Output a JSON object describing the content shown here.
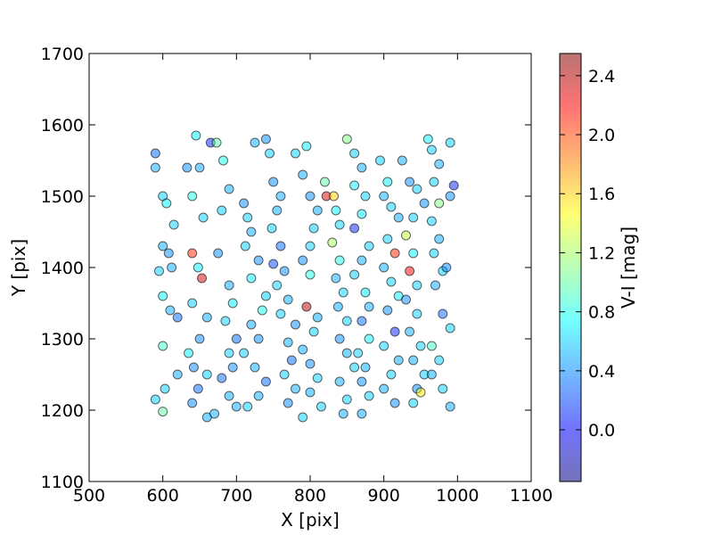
{
  "chart_data": {
    "type": "scatter",
    "xlabel": "X [pix]",
    "ylabel": "Y [pix]",
    "xlim": [
      500,
      1100
    ],
    "ylim": [
      1100,
      1700
    ],
    "x_ticks": [
      "500",
      "600",
      "700",
      "800",
      "900",
      "1000",
      "1100"
    ],
    "y_ticks": [
      "1100",
      "1200",
      "1300",
      "1400",
      "1500",
      "1600",
      "1700"
    ],
    "grid": false,
    "colorbar": {
      "label": "V-I [mag]",
      "range": [
        -0.35,
        2.55
      ],
      "ticks": [
        "0.0",
        "0.4",
        "0.8",
        "1.2",
        "1.6",
        "2.0",
        "2.4"
      ],
      "colormap": "jet",
      "alpha": 0.5
    },
    "colormap_stops": [
      "#00007f",
      "#0000ff",
      "#007fff",
      "#00ffff",
      "#7fff7f",
      "#ffff00",
      "#ff7f00",
      "#ff0000",
      "#7f0000"
    ],
    "points": [
      [
        590,
        1560,
        0.3
      ],
      [
        590,
        1540,
        0.5
      ],
      [
        600,
        1500,
        0.6
      ],
      [
        605,
        1490,
        0.7
      ],
      [
        615,
        1460,
        0.6
      ],
      [
        600,
        1430,
        0.5
      ],
      [
        608,
        1420,
        0.4
      ],
      [
        612,
        1400,
        0.5
      ],
      [
        595,
        1395,
        0.6
      ],
      [
        600,
        1360,
        0.7
      ],
      [
        610,
        1340,
        0.5
      ],
      [
        620,
        1330,
        0.3
      ],
      [
        600,
        1290,
        0.9
      ],
      [
        603,
        1230,
        0.6
      ],
      [
        590,
        1215,
        0.6
      ],
      [
        600,
        1198,
        1.0
      ],
      [
        620,
        1250,
        0.5
      ],
      [
        633,
        1540,
        0.4
      ],
      [
        645,
        1585,
        0.7
      ],
      [
        650,
        1540,
        0.5
      ],
      [
        640,
        1500,
        0.8
      ],
      [
        655,
        1470,
        0.6
      ],
      [
        640,
        1420,
        2.1
      ],
      [
        648,
        1400,
        0.7
      ],
      [
        653,
        1385,
        2.3
      ],
      [
        640,
        1350,
        0.6
      ],
      [
        660,
        1330,
        0.5
      ],
      [
        650,
        1300,
        0.4
      ],
      [
        635,
        1280,
        0.7
      ],
      [
        642,
        1260,
        0.4
      ],
      [
        660,
        1250,
        0.6
      ],
      [
        648,
        1230,
        0.3
      ],
      [
        640,
        1210,
        0.4
      ],
      [
        660,
        1190,
        0.5
      ],
      [
        670,
        1195,
        0.5
      ],
      [
        665,
        1575,
        0.1
      ],
      [
        673,
        1575,
        1.0
      ],
      [
        682,
        1550,
        0.8
      ],
      [
        690,
        1510,
        0.5
      ],
      [
        680,
        1480,
        0.6
      ],
      [
        675,
        1420,
        0.4
      ],
      [
        690,
        1375,
        0.5
      ],
      [
        695,
        1350,
        0.7
      ],
      [
        685,
        1325,
        0.6
      ],
      [
        700,
        1300,
        0.3
      ],
      [
        690,
        1280,
        0.6
      ],
      [
        695,
        1260,
        0.4
      ],
      [
        680,
        1245,
        0.3
      ],
      [
        690,
        1220,
        0.5
      ],
      [
        700,
        1205,
        0.5
      ],
      [
        710,
        1490,
        0.4
      ],
      [
        715,
        1470,
        0.6
      ],
      [
        720,
        1450,
        0.5
      ],
      [
        712,
        1430,
        0.6
      ],
      [
        730,
        1410,
        0.4
      ],
      [
        720,
        1385,
        0.7
      ],
      [
        740,
        1360,
        0.6
      ],
      [
        735,
        1340,
        0.8
      ],
      [
        720,
        1320,
        0.5
      ],
      [
        730,
        1300,
        0.4
      ],
      [
        710,
        1280,
        0.6
      ],
      [
        725,
        1260,
        0.5
      ],
      [
        740,
        1240,
        0.3
      ],
      [
        730,
        1220,
        0.5
      ],
      [
        715,
        1205,
        0.6
      ],
      [
        725,
        1575,
        0.5
      ],
      [
        740,
        1580,
        0.4
      ],
      [
        745,
        1560,
        0.6
      ],
      [
        750,
        1520,
        0.4
      ],
      [
        760,
        1500,
        0.5
      ],
      [
        755,
        1480,
        0.5
      ],
      [
        748,
        1455,
        0.6
      ],
      [
        760,
        1430,
        0.3
      ],
      [
        750,
        1405,
        0.2
      ],
      [
        765,
        1395,
        0.4
      ],
      [
        755,
        1375,
        0.6
      ],
      [
        770,
        1355,
        0.5
      ],
      [
        760,
        1335,
        0.6
      ],
      [
        780,
        1320,
        0.4
      ],
      [
        770,
        1295,
        0.5
      ],
      [
        775,
        1270,
        0.3
      ],
      [
        765,
        1250,
        0.6
      ],
      [
        780,
        1230,
        0.5
      ],
      [
        770,
        1210,
        0.4
      ],
      [
        790,
        1190,
        0.6
      ],
      [
        780,
        1560,
        0.6
      ],
      [
        795,
        1570,
        0.7
      ],
      [
        790,
        1530,
        0.5
      ],
      [
        800,
        1500,
        0.4
      ],
      [
        810,
        1480,
        0.5
      ],
      [
        805,
        1455,
        0.6
      ],
      [
        800,
        1430,
        0.6
      ],
      [
        790,
        1410,
        0.4
      ],
      [
        800,
        1390,
        0.8
      ],
      [
        795,
        1345,
        2.4
      ],
      [
        810,
        1330,
        0.5
      ],
      [
        805,
        1310,
        0.6
      ],
      [
        790,
        1285,
        0.5
      ],
      [
        800,
        1265,
        0.4
      ],
      [
        810,
        1245,
        0.6
      ],
      [
        800,
        1225,
        0.5
      ],
      [
        815,
        1205,
        0.6
      ],
      [
        820,
        1520,
        1.0
      ],
      [
        822,
        1500,
        2.3
      ],
      [
        832,
        1500,
        1.6
      ],
      [
        835,
        1480,
        0.7
      ],
      [
        840,
        1460,
        0.6
      ],
      [
        830,
        1435,
        1.2
      ],
      [
        840,
        1410,
        0.8
      ],
      [
        835,
        1385,
        0.5
      ],
      [
        845,
        1365,
        0.6
      ],
      [
        838,
        1345,
        0.5
      ],
      [
        850,
        1325,
        0.6
      ],
      [
        840,
        1300,
        0.4
      ],
      [
        850,
        1280,
        0.5
      ],
      [
        860,
        1260,
        0.6
      ],
      [
        840,
        1240,
        0.5
      ],
      [
        850,
        1215,
        0.6
      ],
      [
        845,
        1195,
        0.5
      ],
      [
        850,
        1580,
        1.1
      ],
      [
        860,
        1560,
        0.6
      ],
      [
        870,
        1540,
        0.5
      ],
      [
        860,
        1515,
        0.7
      ],
      [
        875,
        1500,
        0.6
      ],
      [
        870,
        1475,
        0.7
      ],
      [
        860,
        1455,
        0.1
      ],
      [
        880,
        1430,
        0.6
      ],
      [
        870,
        1410,
        0.5
      ],
      [
        860,
        1390,
        0.6
      ],
      [
        875,
        1365,
        0.7
      ],
      [
        880,
        1345,
        0.5
      ],
      [
        870,
        1325,
        0.3
      ],
      [
        880,
        1300,
        0.7
      ],
      [
        865,
        1280,
        0.6
      ],
      [
        875,
        1260,
        0.5
      ],
      [
        870,
        1240,
        0.4
      ],
      [
        880,
        1220,
        0.6
      ],
      [
        870,
        1195,
        0.5
      ],
      [
        895,
        1550,
        0.6
      ],
      [
        905,
        1520,
        0.7
      ],
      [
        900,
        1500,
        0.5
      ],
      [
        910,
        1485,
        0.6
      ],
      [
        920,
        1470,
        0.5
      ],
      [
        905,
        1440,
        0.6
      ],
      [
        915,
        1420,
        2.1
      ],
      [
        900,
        1400,
        0.5
      ],
      [
        910,
        1380,
        0.6
      ],
      [
        920,
        1360,
        0.7
      ],
      [
        905,
        1340,
        0.4
      ],
      [
        915,
        1310,
        0.1
      ],
      [
        900,
        1290,
        0.6
      ],
      [
        920,
        1270,
        0.5
      ],
      [
        910,
        1250,
        0.6
      ],
      [
        900,
        1230,
        0.5
      ],
      [
        915,
        1210,
        0.4
      ],
      [
        925,
        1550,
        0.5
      ],
      [
        935,
        1520,
        0.4
      ],
      [
        945,
        1510,
        0.6
      ],
      [
        955,
        1490,
        0.4
      ],
      [
        940,
        1470,
        0.6
      ],
      [
        930,
        1445,
        1.3
      ],
      [
        940,
        1420,
        0.7
      ],
      [
        935,
        1395,
        2.2
      ],
      [
        945,
        1375,
        0.6
      ],
      [
        930,
        1355,
        0.4
      ],
      [
        945,
        1335,
        0.6
      ],
      [
        935,
        1310,
        0.5
      ],
      [
        950,
        1290,
        0.6
      ],
      [
        940,
        1270,
        0.5
      ],
      [
        955,
        1250,
        0.6
      ],
      [
        945,
        1230,
        0.4
      ],
      [
        950,
        1225,
        1.5
      ],
      [
        940,
        1210,
        0.6
      ],
      [
        960,
        1580,
        0.7
      ],
      [
        965,
        1565,
        0.6
      ],
      [
        975,
        1545,
        0.5
      ],
      [
        968,
        1520,
        0.6
      ],
      [
        975,
        1490,
        1.1
      ],
      [
        965,
        1465,
        0.6
      ],
      [
        975,
        1440,
        0.5
      ],
      [
        968,
        1420,
        0.6
      ],
      [
        980,
        1395,
        0.6
      ],
      [
        985,
        1400,
        0.4
      ],
      [
        970,
        1375,
        0.5
      ],
      [
        980,
        1335,
        0.3
      ],
      [
        990,
        1315,
        0.6
      ],
      [
        965,
        1290,
        0.9
      ],
      [
        975,
        1270,
        0.6
      ],
      [
        965,
        1250,
        0.5
      ],
      [
        980,
        1230,
        0.6
      ],
      [
        990,
        1205,
        0.5
      ],
      [
        990,
        1575,
        0.6
      ],
      [
        995,
        1515,
        0.1
      ],
      [
        990,
        1500,
        0.4
      ]
    ]
  }
}
